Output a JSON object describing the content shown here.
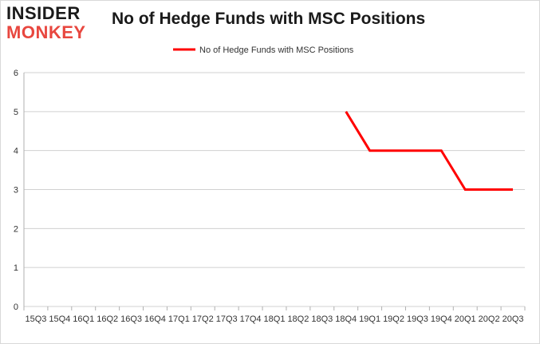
{
  "logo": {
    "line1": "INSIDER",
    "line2": "MONKEY"
  },
  "chart_data": {
    "type": "line",
    "title": "No of Hedge Funds with MSC Positions",
    "xlabel": "",
    "ylabel": "",
    "categories": [
      "15Q3",
      "15Q4",
      "16Q1",
      "16Q2",
      "16Q3",
      "16Q4",
      "17Q1",
      "17Q2",
      "17Q3",
      "17Q4",
      "18Q1",
      "18Q2",
      "18Q3",
      "18Q4",
      "19Q1",
      "19Q2",
      "19Q3",
      "19Q4",
      "20Q1",
      "20Q2",
      "20Q3"
    ],
    "series": [
      {
        "name": "No of Hedge Funds with MSC Positions",
        "color": "#ff0000",
        "values": [
          null,
          null,
          null,
          null,
          null,
          null,
          null,
          null,
          null,
          null,
          null,
          null,
          null,
          5,
          4,
          4,
          4,
          4,
          3,
          3,
          3
        ]
      }
    ],
    "ylim": [
      0,
      6
    ],
    "yticks": [
      0,
      1,
      2,
      3,
      4,
      5,
      6
    ],
    "grid": true,
    "legend": "top-center"
  }
}
